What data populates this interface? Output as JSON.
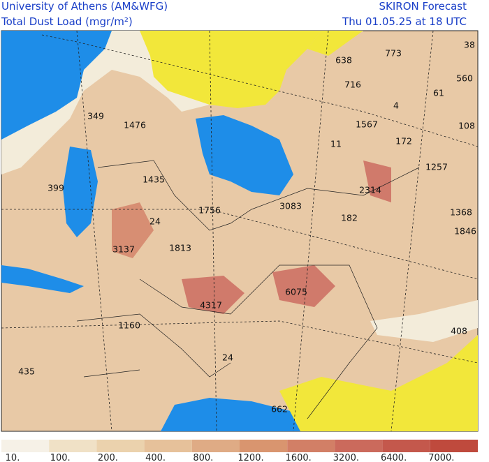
{
  "header": {
    "left_line1": "University of Athens (AM&WFG)",
    "left_line2": "Total Dust Load (mgr/m²)",
    "right_line1": "SKIRON Forecast",
    "right_line2": "Thu 01.05.25 at 18 UTC"
  },
  "map_labels": [
    "349",
    "1476",
    "399",
    "1435",
    "24",
    "1756",
    "3137",
    "1813",
    "3083",
    "182",
    "4317",
    "6075",
    "1160",
    "435",
    "24",
    "662",
    "638",
    "773",
    "38",
    "716",
    "560",
    "61",
    "4",
    "1567",
    "172",
    "108",
    "11",
    "1257",
    "2314",
    "1368",
    "1846",
    "408"
  ],
  "colorbar": {
    "labels": [
      "10.",
      "100.",
      "200.",
      "400.",
      "800.",
      "1200.",
      "1600.",
      "3200.",
      "6400.",
      "7000."
    ],
    "colors": [
      "#f6f1e7",
      "#f0e1c6",
      "#ebd2ad",
      "#e6c19a",
      "#dfab85",
      "#d9956f",
      "#d27f66",
      "#cb6a5c",
      "#c4584c",
      "#bf4a3d"
    ]
  }
}
